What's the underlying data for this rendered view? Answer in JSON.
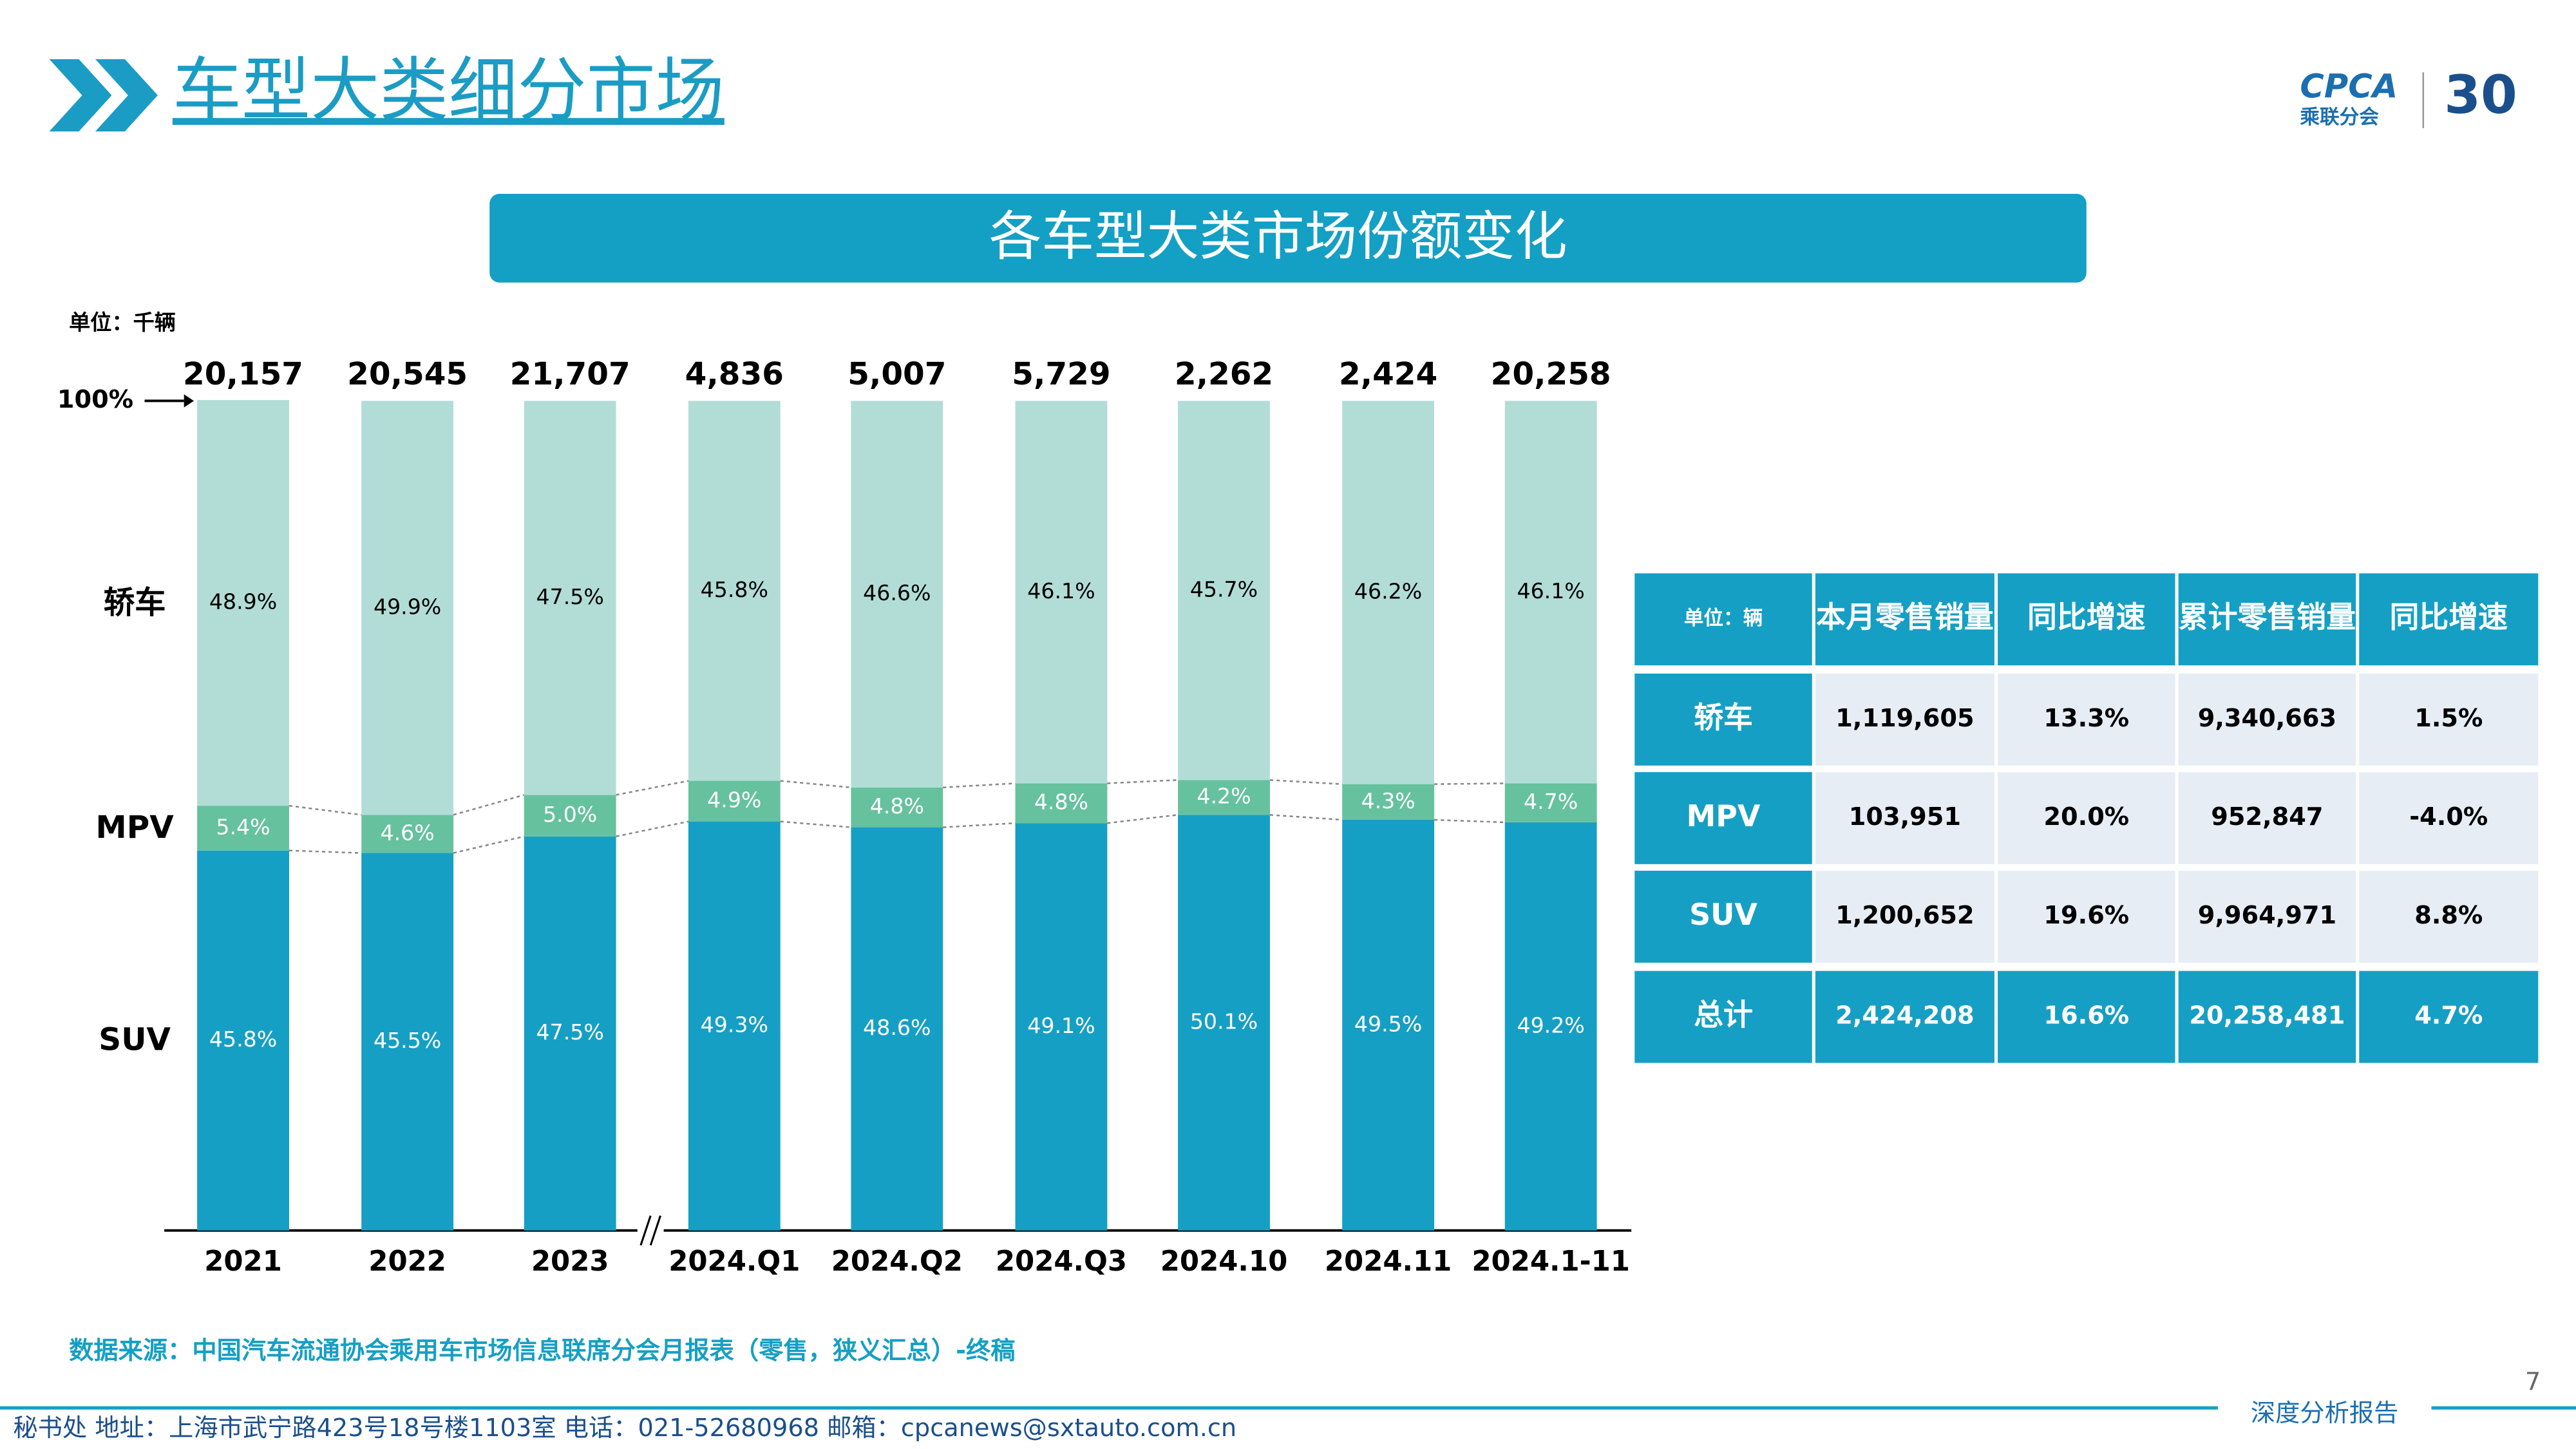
{
  "header": {
    "title": "车型大类细分市场",
    "logo_text": "CPCA",
    "logo_sub": "乘联分会",
    "logo_year": "30",
    "banner": "各车型大类市场份额变化"
  },
  "chart_data": {
    "type": "stacked_bar",
    "unit": "单位：千辆",
    "categories": [
      "2021",
      "2022",
      "2023",
      "2024.Q1",
      "2024.Q2",
      "2024.Q3",
      "2024.10",
      "2024.11",
      "2024.1-11"
    ],
    "series": [
      {
        "name": "SUV",
        "color": "#169fc4",
        "values": [
          45.8,
          45.5,
          47.5,
          49.3,
          48.6,
          49.1,
          50.1,
          49.5,
          49.2
        ],
        "value_labels": [
          "45.8%",
          "45.5%",
          "47.5%",
          "49.3%",
          "48.6%",
          "49.1%",
          "50.1%",
          "49.5%",
          "49.2%"
        ]
      },
      {
        "name": "MPV",
        "color": "#66c19e",
        "values": [
          5.4,
          4.6,
          5.0,
          4.9,
          4.8,
          4.8,
          4.2,
          4.3,
          4.7
        ],
        "value_labels": [
          "5.4%",
          "4.6%",
          "5.0%",
          "4.9%",
          "4.8%",
          "4.8%",
          "4.2%",
          "4.3%",
          "4.7%"
        ]
      },
      {
        "name": "轿车",
        "color": "#b2ddd6",
        "values": [
          48.9,
          49.9,
          47.5,
          45.8,
          46.6,
          46.1,
          45.7,
          46.2,
          46.1
        ],
        "value_labels": [
          "48.9%",
          "49.9%",
          "47.5%",
          "45.8%",
          "46.6%",
          "46.1%",
          "45.7%",
          "46.2%",
          "46.1%"
        ]
      }
    ],
    "totals": {
      "values": [
        20157,
        20545,
        21707,
        4836,
        5007,
        5729,
        2262,
        2424,
        20258
      ],
      "value_labels": [
        "20,157",
        "20,545",
        "21,707",
        "4,836",
        "5,007",
        "5,729",
        "2,262",
        "2,424",
        "20,258"
      ]
    },
    "ylim": [
      0,
      100
    ],
    "yticks": [
      {
        "value": 100,
        "label": "100%"
      }
    ]
  },
  "table": {
    "header": [
      "单位：辆",
      "本月零售销量",
      "同比增速",
      "累计零售销量",
      "同比增速"
    ],
    "rows": [
      [
        "轿车",
        "1,119,605",
        "13.3%",
        "9,340,663",
        "1.5%"
      ],
      [
        "MPV",
        "103,951",
        "20.0%",
        "952,847",
        "-4.0%"
      ],
      [
        "SUV",
        "1,200,652",
        "19.6%",
        "9,964,971",
        "8.8%"
      ],
      [
        "总计",
        "2,424,208",
        "16.6%",
        "20,258,481",
        "4.7%"
      ]
    ]
  },
  "footer": {
    "source": "数据来源：中国汽车流通协会乘用车市场信息联席分会月报表（零售，狭义汇总）-终稿",
    "page": "7",
    "tag": "深度分析报告",
    "address": "秘书处  地址：上海市武宁路423号18号楼1103室  电话：021-52680968  邮箱：cpcanews@sxtauto.com.cn"
  }
}
